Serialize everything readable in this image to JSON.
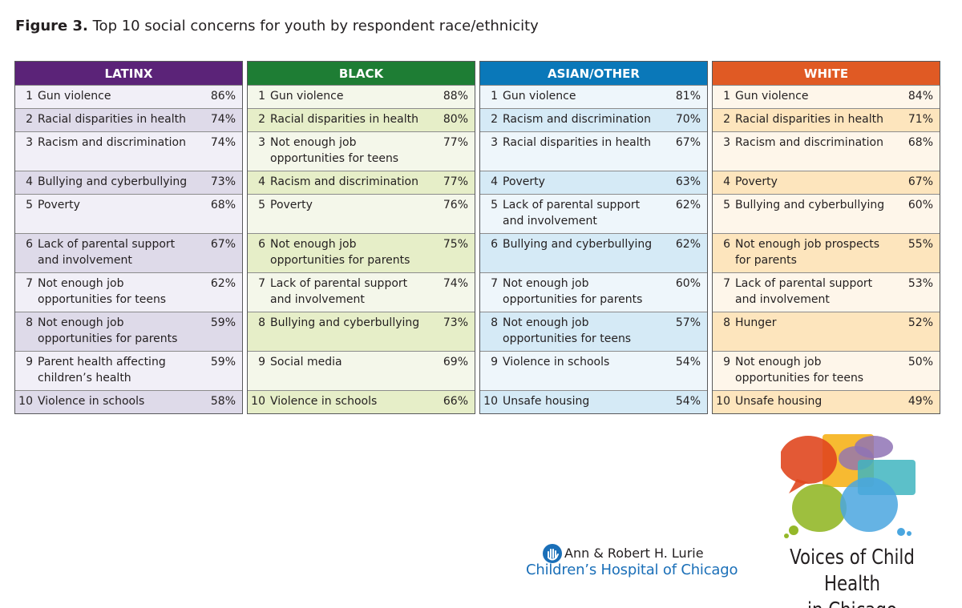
{
  "figure": {
    "label": "Figure 3.",
    "title": "Top 10 social concerns for youth by respondent race/ethnicity"
  },
  "colors": {
    "latinx_header": "#5b2378",
    "black_header": "#1e7d34",
    "asian_other_header": "#0a78b9",
    "white_header": "#e05a24"
  },
  "columns": [
    {
      "header": "LATINX",
      "rows": [
        {
          "rank": "1",
          "label": "Gun violence",
          "pct": "86%"
        },
        {
          "rank": "2",
          "label": "Racial disparities in health",
          "pct": "74%"
        },
        {
          "rank": "3",
          "label": "Racism and discrimination",
          "pct": "74%"
        },
        {
          "rank": "4",
          "label": "Bullying and cyberbullying",
          "pct": "73%"
        },
        {
          "rank": "5",
          "label": "Poverty",
          "pct": "68%"
        },
        {
          "rank": "6",
          "label": "Lack of parental support and involvement",
          "pct": "67%"
        },
        {
          "rank": "7",
          "label": "Not enough job opportunities for teens",
          "pct": "62%"
        },
        {
          "rank": "8",
          "label": "Not enough job opportunities for parents",
          "pct": "59%"
        },
        {
          "rank": "9",
          "label": "Parent health affecting children’s health",
          "pct": "59%"
        },
        {
          "rank": "10",
          "label": "Violence in schools",
          "pct": "58%"
        }
      ]
    },
    {
      "header": "BLACK",
      "rows": [
        {
          "rank": "1",
          "label": "Gun violence",
          "pct": "88%"
        },
        {
          "rank": "2",
          "label": "Racial disparities in health",
          "pct": "80%"
        },
        {
          "rank": "3",
          "label": "Not enough job opportunities for teens",
          "pct": "77%"
        },
        {
          "rank": "4",
          "label": "Racism and discrimination",
          "pct": "77%"
        },
        {
          "rank": "5",
          "label": "Poverty",
          "pct": "76%"
        },
        {
          "rank": "6",
          "label": "Not enough job opportunities for parents",
          "pct": "75%"
        },
        {
          "rank": "7",
          "label": "Lack of parental support and involvement",
          "pct": "74%"
        },
        {
          "rank": "8",
          "label": "Bullying and cyberbullying",
          "pct": "73%"
        },
        {
          "rank": "9",
          "label": "Social media",
          "pct": "69%"
        },
        {
          "rank": "10",
          "label": "Violence in schools",
          "pct": "66%"
        }
      ]
    },
    {
      "header": "ASIAN/OTHER",
      "rows": [
        {
          "rank": "1",
          "label": "Gun violence",
          "pct": "81%"
        },
        {
          "rank": "2",
          "label": "Racism and discrimination",
          "pct": "70%"
        },
        {
          "rank": "3",
          "label": "Racial disparities in health",
          "pct": "67%"
        },
        {
          "rank": "4",
          "label": "Poverty",
          "pct": "63%"
        },
        {
          "rank": "5",
          "label": "Lack of parental support and involvement",
          "pct": "62%"
        },
        {
          "rank": "6",
          "label": "Bullying and cyberbullying",
          "pct": "62%"
        },
        {
          "rank": "7",
          "label": "Not enough job opportunities for parents",
          "pct": "60%"
        },
        {
          "rank": "8",
          "label": "Not enough job opportunities for teens",
          "pct": "57%"
        },
        {
          "rank": "9",
          "label": "Violence in schools",
          "pct": "54%"
        },
        {
          "rank": "10",
          "label": "Unsafe housing",
          "pct": "54%"
        }
      ]
    },
    {
      "header": "WHITE",
      "rows": [
        {
          "rank": "1",
          "label": "Gun violence",
          "pct": "84%"
        },
        {
          "rank": "2",
          "label": "Racial disparities in health",
          "pct": "71%"
        },
        {
          "rank": "3",
          "label": "Racism and discrimination",
          "pct": "68%"
        },
        {
          "rank": "4",
          "label": "Poverty",
          "pct": "67%"
        },
        {
          "rank": "5",
          "label": "Bullying and cyberbullying",
          "pct": "60%"
        },
        {
          "rank": "6",
          "label": "Not enough job prospects for parents",
          "pct": "55%"
        },
        {
          "rank": "7",
          "label": "Lack of parental support and involvement",
          "pct": "53%"
        },
        {
          "rank": "8",
          "label": "Hunger",
          "pct": "52%"
        },
        {
          "rank": "9",
          "label": "Not enough job opportunities for teens",
          "pct": "50%"
        },
        {
          "rank": "10",
          "label": "Unsafe housing",
          "pct": "49%"
        }
      ]
    }
  ],
  "logos": {
    "lurie_line1": "Ann & Robert H. Lurie",
    "lurie_line2": "Children’s Hospital of Chicago",
    "voices_line1": "Voices of Child Health",
    "voices_line2": "in Chicago"
  }
}
